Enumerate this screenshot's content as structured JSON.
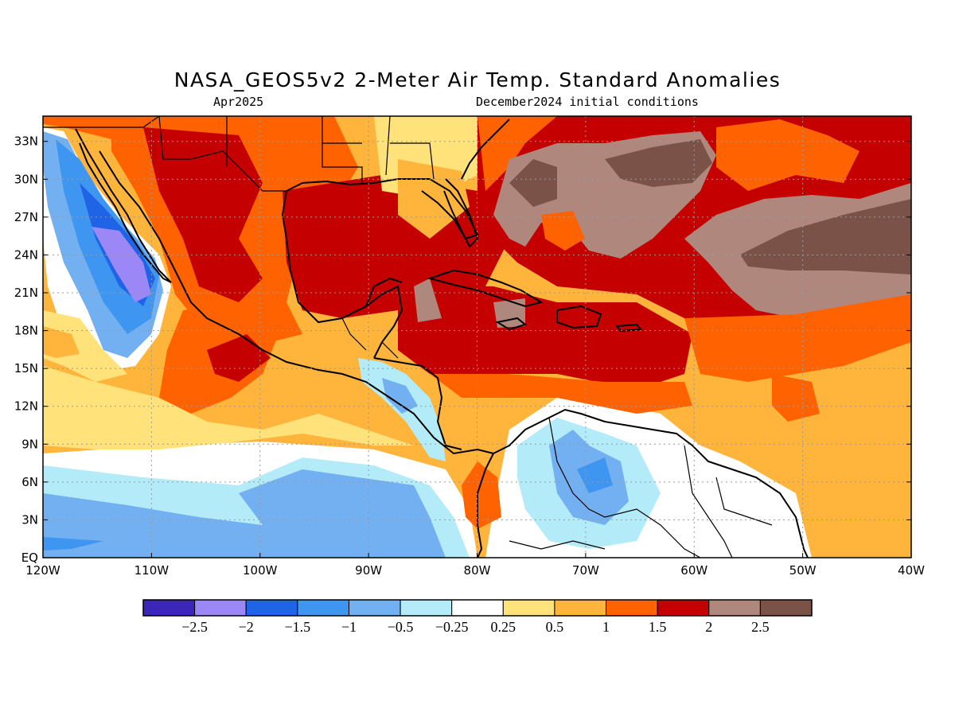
{
  "title": "NASA_GEOS5v2 2-Meter Air Temp. Standard Anomalies",
  "subtitle_left": "Apr2025",
  "subtitle_right": "December2024 initial conditions",
  "map": {
    "lon_range": [
      -120,
      -40
    ],
    "lat_range": [
      0,
      35
    ],
    "grid": true,
    "x_ticks": [
      {
        "value": -120,
        "label": "120W"
      },
      {
        "value": -110,
        "label": "110W"
      },
      {
        "value": -100,
        "label": "100W"
      },
      {
        "value": -90,
        "label": "90W"
      },
      {
        "value": -80,
        "label": "80W"
      },
      {
        "value": -70,
        "label": "70W"
      },
      {
        "value": -60,
        "label": "60W"
      },
      {
        "value": -50,
        "label": "50W"
      },
      {
        "value": -40,
        "label": "40W"
      }
    ],
    "y_ticks": [
      {
        "value": 0,
        "label": "EQ"
      },
      {
        "value": 3,
        "label": "3N"
      },
      {
        "value": 6,
        "label": "6N"
      },
      {
        "value": 9,
        "label": "9N"
      },
      {
        "value": 12,
        "label": "12N"
      },
      {
        "value": 15,
        "label": "15N"
      },
      {
        "value": 18,
        "label": "18N"
      },
      {
        "value": 21,
        "label": "21N"
      },
      {
        "value": 24,
        "label": "24N"
      },
      {
        "value": 27,
        "label": "27N"
      },
      {
        "value": 30,
        "label": "30N"
      },
      {
        "value": 33,
        "label": "33N"
      }
    ]
  },
  "colorbar": {
    "colors": [
      "#3a26b8",
      "#9b87f5",
      "#1f63e6",
      "#3f96f0",
      "#73b0f2",
      "#b3ecf8",
      "#ffffff",
      "#ffe27a",
      "#ffb43c",
      "#ff6200",
      "#c40000",
      "#af877d",
      "#7a5248"
    ],
    "labels": [
      "−2.5",
      "−2",
      "−1.5",
      "−1",
      "−0.5",
      "−0.25",
      "0.25",
      "0.5",
      "1",
      "1.5",
      "2",
      "2.5"
    ]
  }
}
